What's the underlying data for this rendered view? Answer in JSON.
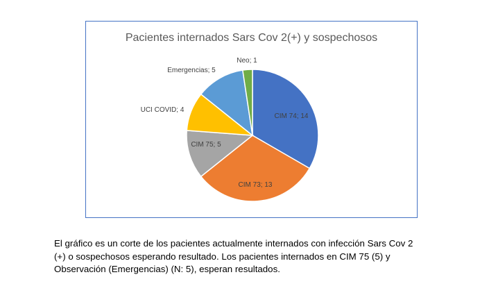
{
  "chart_data": {
    "type": "pie",
    "title": "Pacientes internados Sars Cov 2(+) y sospechosos",
    "slices": [
      {
        "label": "CIM 74; 14",
        "value": 14,
        "color": "#4472c4"
      },
      {
        "label": "CIM 73; 13",
        "value": 13,
        "color": "#ed7d31"
      },
      {
        "label": "CIM 75; 5",
        "value": 5,
        "color": "#a5a5a5"
      },
      {
        "label": "UCI COVID; 4",
        "value": 4,
        "color": "#ffc000"
      },
      {
        "label": "Emergencias; 5",
        "value": 5,
        "color": "#5b9bd5"
      },
      {
        "label": "Neo; 1",
        "value": 1,
        "color": "#70ad47"
      }
    ]
  },
  "caption": {
    "line1": "El gráfico es un corte de los pacientes actualmente internados con infección Sars Cov 2",
    "line2": "(+) o sospechosos esperando resultado. Los pacientes internados en CIM 75 (5) y",
    "line3": "Observación (Emergencias) (N: 5), esperan resultados."
  }
}
